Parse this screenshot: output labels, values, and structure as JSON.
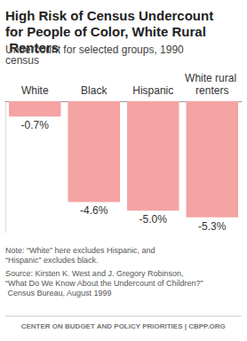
{
  "chart_data": {
    "type": "bar",
    "title": "High Risk of Census Undercount for People of Color, White Rural Renters",
    "subtitle": "Undercount for selected groups, 1990 census",
    "categories": [
      "White",
      "Black",
      "Hispanic",
      "White rural renters"
    ],
    "values": [
      -0.7,
      -4.6,
      -5.0,
      -5.3
    ],
    "value_labels": [
      "-0.7%",
      "-4.6%",
      "-5.0%",
      "-5.3%"
    ],
    "color": "#f5a3a3",
    "ylim": [
      -6,
      0
    ],
    "grid": false,
    "data_labels": true,
    "tick_labels": "x",
    "annotations": [
      "Note: “White” here excludes Hispanic, and “Hispanic” excludes black.",
      "Source: Kirsten K. West and J. Gregory Robinson, “What Do We Know About the Undercount of Children?” Census Bureau, August 1999",
      "CENTER ON BUDGET AND POLICY PRIORITIES | CBPP.ORG"
    ]
  }
}
